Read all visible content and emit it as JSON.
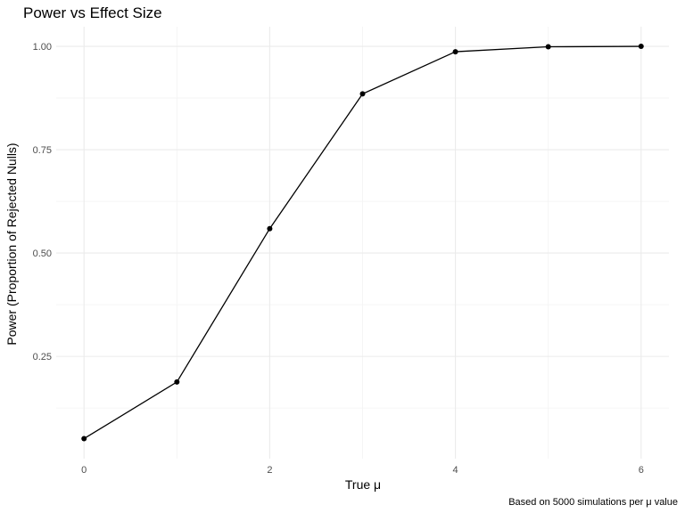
{
  "chart_data": {
    "type": "line",
    "title": "Power vs Effect Size",
    "xlabel": "True μ",
    "ylabel": "Power (Proportion of Rejected Nulls)",
    "caption": "Based on 5000 simulations per μ value",
    "x": [
      0,
      1,
      2,
      3,
      4,
      5,
      6
    ],
    "series": [
      {
        "values": [
          0.051,
          0.188,
          0.559,
          0.885,
          0.987,
          0.999,
          1.0
        ]
      }
    ],
    "x_ticks": [
      0,
      2,
      4,
      6
    ],
    "x_tick_labels": [
      "0",
      "2",
      "4",
      "6"
    ],
    "y_ticks": [
      0.25,
      0.5,
      0.75,
      1.0
    ],
    "y_tick_labels": [
      "0.25",
      "0.50",
      "0.75",
      "1.00"
    ],
    "xlim": [
      -0.3,
      6.3
    ],
    "ylim": [
      0.0025,
      1.0475
    ],
    "grid": true,
    "legend": "none",
    "colors": {
      "line": "#000000",
      "point": "#000000",
      "grid": "#ebebeb",
      "background": "#ffffff"
    }
  }
}
